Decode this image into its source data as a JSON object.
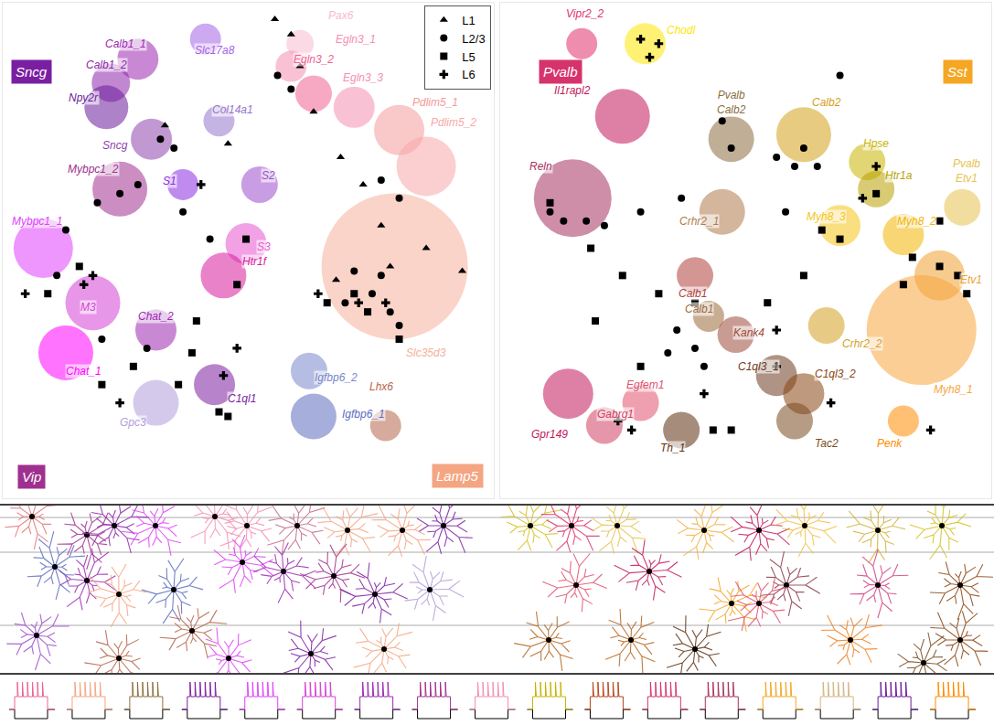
{
  "chart_data": [
    {
      "type": "scatter",
      "xlim": [
        0,
        545
      ],
      "ylim": [
        545,
        0
      ],
      "tick_labels": false,
      "grid": false,
      "legend": "top right",
      "class_labels": [
        {
          "text": "Sncg",
          "x": 32,
          "y": 76,
          "color": "#7b1fa2"
        },
        {
          "text": "Vip",
          "x": 32,
          "y": 521,
          "color": "#a0308f"
        },
        {
          "text": "Lamp5",
          "x": 505,
          "y": 520,
          "color": "#f4a582"
        }
      ],
      "clusters": [
        {
          "label": "Calb1_1",
          "x": 150,
          "y": 62,
          "size": 45,
          "color": "#9c27b0",
          "label_x": 137,
          "label_y": 45
        },
        {
          "label": "Calb1_2",
          "x": 120,
          "y": 88,
          "size": 42,
          "color": "#8e24aa",
          "label_x": 115,
          "label_y": 68
        },
        {
          "label": "Slc17a8",
          "x": 225,
          "y": 40,
          "size": 34,
          "color": "#a463e8",
          "label_x": 235,
          "label_y": 52
        },
        {
          "label": "Npy2r",
          "x": 115,
          "y": 115,
          "size": 48,
          "color": "#6a1b9a",
          "label_x": 90,
          "label_y": 105
        },
        {
          "label": "Sncg",
          "x": 165,
          "y": 150,
          "size": 45,
          "color": "#8e44ad",
          "label_x": 125,
          "label_y": 157
        },
        {
          "label": "Col14a1",
          "x": 240,
          "y": 130,
          "size": 34,
          "color": "#9575cd",
          "label_x": 255,
          "label_y": 118
        },
        {
          "label": "Mybpc1_2",
          "x": 130,
          "y": 205,
          "size": 60,
          "color": "#a0308f",
          "label_x": 100,
          "label_y": 183
        },
        {
          "label": "S1",
          "x": 200,
          "y": 200,
          "size": 34,
          "color": "#8a2be2",
          "label_x": 185,
          "label_y": 196
        },
        {
          "label": "S2",
          "x": 285,
          "y": 200,
          "size": 40,
          "color": "#9c4dcc",
          "label_x": 295,
          "label_y": 190
        },
        {
          "label": "Mybpc1_1",
          "x": 45,
          "y": 270,
          "size": 65,
          "color": "#e040fb",
          "label_x": 38,
          "label_y": 240
        },
        {
          "label": "S3",
          "x": 270,
          "y": 265,
          "size": 45,
          "color": "#e854d0",
          "label_x": 290,
          "label_y": 268
        },
        {
          "label": "Htr1f",
          "x": 245,
          "y": 300,
          "size": 50,
          "color": "#d81b9e",
          "label_x": 280,
          "label_y": 285
        },
        {
          "label": "M3",
          "x": 100,
          "y": 330,
          "size": 60,
          "color": "#d63fd6",
          "label_x": 95,
          "label_y": 335
        },
        {
          "label": "Chat_2",
          "x": 170,
          "y": 360,
          "size": 45,
          "color": "#9c27b0",
          "label_x": 170,
          "label_y": 345
        },
        {
          "label": "Chat_1",
          "x": 70,
          "y": 385,
          "size": 60,
          "color": "#ff00ff",
          "label_x": 90,
          "label_y": 405
        },
        {
          "label": "Gpc3",
          "x": 170,
          "y": 440,
          "size": 50,
          "color": "#b39ddb",
          "label_x": 145,
          "label_y": 462
        },
        {
          "label": "C1ql1",
          "x": 235,
          "y": 420,
          "size": 45,
          "color": "#7b1fa2",
          "label_x": 265,
          "label_y": 435
        },
        {
          "label": "Igfbp6_2",
          "x": 340,
          "y": 405,
          "size": 40,
          "color": "#7986cb",
          "label_x": 370,
          "label_y": 412
        },
        {
          "label": "Igfbp6_1",
          "x": 345,
          "y": 455,
          "size": 50,
          "color": "#5c6bc0",
          "label_x": 400,
          "label_y": 452
        },
        {
          "label": "Lhx6",
          "x": 425,
          "y": 465,
          "size": 34,
          "color": "#b5654a",
          "label_x": 420,
          "label_y": 422
        },
        {
          "label": "Pax6",
          "x": 330,
          "y": 45,
          "size": 30,
          "color": "#f8bbd0",
          "label_x": 375,
          "label_y": 14
        },
        {
          "label": "Egln3_1",
          "x": 320,
          "y": 70,
          "size": 34,
          "color": "#f48fb1",
          "label_x": 392,
          "label_y": 40
        },
        {
          "label": "Egln3_2",
          "x": 345,
          "y": 100,
          "size": 40,
          "color": "#f06292",
          "label_x": 345,
          "label_y": 62
        },
        {
          "label": "Egln3_3",
          "x": 390,
          "y": 115,
          "size": 45,
          "color": "#f48fb1",
          "label_x": 400,
          "label_y": 82
        },
        {
          "label": "Pdlim5_1",
          "x": 440,
          "y": 140,
          "size": 55,
          "color": "#f49a9a",
          "label_x": 480,
          "label_y": 110
        },
        {
          "label": "Pdlim5_2",
          "x": 470,
          "y": 180,
          "size": 65,
          "color": "#f8a8a8",
          "label_x": 500,
          "label_y": 132
        },
        {
          "label": "Slc35d3",
          "x": 435,
          "y": 290,
          "size": 160,
          "color": "#f6b09a",
          "label_x": 470,
          "label_y": 385
        }
      ],
      "series": [
        {
          "name": "L1",
          "marker": "triangle-up",
          "color": "#000000",
          "x": [
            302,
            320,
            330,
            345,
            375,
            400,
            420,
            470,
            510,
            430,
            370,
            180,
            250
          ],
          "y": [
            18,
            35,
            70,
            120,
            170,
            200,
            245,
            270,
            295,
            290,
            305,
            135,
            155
          ]
        },
        {
          "name": "L2/3",
          "marker": "circle",
          "color": "#000000",
          "x": [
            175,
            190,
            150,
            130,
            105,
            70,
            200,
            230,
            305,
            320,
            420,
            440,
            390,
            420,
            410,
            430,
            440,
            380,
            110,
            160,
            60
          ],
          "y": [
            150,
            160,
            200,
            210,
            220,
            250,
            230,
            260,
            80,
            95,
            195,
            215,
            295,
            300,
            320,
            340,
            355,
            330,
            370,
            380,
            300
          ]
        },
        {
          "name": "L5",
          "marker": "square",
          "color": "#000000",
          "x": [
            50,
            85,
            270,
            260,
            215,
            210,
            195,
            240,
            250,
            390,
            405,
            440,
            360,
            110,
            145
          ],
          "y": [
            320,
            290,
            260,
            310,
            350,
            385,
            420,
            450,
            455,
            320,
            340,
            370,
            330,
            420,
            400
          ]
        },
        {
          "name": "L6",
          "marker": "cross",
          "color": "#000000",
          "x": [
            25,
            100,
            220,
            260,
            245,
            395,
            425,
            350,
            130,
            90
          ],
          "y": [
            320,
            300,
            200,
            380,
            410,
            330,
            330,
            320,
            440,
            310
          ]
        }
      ]
    },
    {
      "type": "scatter",
      "xlim": [
        545,
        1087
      ],
      "ylim": [
        545,
        0
      ],
      "tick_labels": false,
      "grid": false,
      "class_labels": [
        {
          "text": "Pvalb",
          "x": 612,
          "y": 76,
          "color": "#d6336c"
        },
        {
          "text": "Sst",
          "x": 1050,
          "y": 76,
          "color": "#f5a623"
        }
      ],
      "clusters": [
        {
          "label": "Vipr2_2",
          "x": 635,
          "y": 45,
          "size": 34,
          "color": "#e0306a",
          "label_x": 638,
          "label_y": 12
        },
        {
          "label": "Chodl",
          "x": 705,
          "y": 45,
          "size": 45,
          "color": "#ffe600",
          "label_x": 745,
          "label_y": 30
        },
        {
          "label": "Il1rapl2",
          "x": 680,
          "y": 125,
          "size": 60,
          "color": "#c2185b",
          "label_x": 625,
          "label_y": 97
        },
        {
          "label": "Pvalb Calb2",
          "x": 800,
          "y": 150,
          "size": 50,
          "color": "#8d6e3f",
          "label_x": 800,
          "label_y": 110
        },
        {
          "label": "Calb2",
          "x": 880,
          "y": 145,
          "size": 60,
          "color": "#d4a017",
          "label_x": 905,
          "label_y": 110
        },
        {
          "label": "Hpse",
          "x": 950,
          "y": 175,
          "size": 40,
          "color": "#c8b400",
          "label_x": 960,
          "label_y": 155
        },
        {
          "label": "Htr1a",
          "x": 960,
          "y": 205,
          "size": 40,
          "color": "#b8a000",
          "label_x": 985,
          "label_y": 190
        },
        {
          "label": "Pvalb Etv1",
          "x": 1055,
          "y": 225,
          "size": 40,
          "color": "#e6c350",
          "label_x": 1060,
          "label_y": 185
        },
        {
          "label": "Reln",
          "x": 625,
          "y": 215,
          "size": 85,
          "color": "#a8325e",
          "label_x": 590,
          "label_y": 180
        },
        {
          "label": "Crhr2_1",
          "x": 790,
          "y": 230,
          "size": 50,
          "color": "#b07a4a",
          "label_x": 765,
          "label_y": 240
        },
        {
          "label": "Myh8_3",
          "x": 920,
          "y": 245,
          "size": 45,
          "color": "#f5c518",
          "label_x": 905,
          "label_y": 235
        },
        {
          "label": "Myh8_2",
          "x": 990,
          "y": 255,
          "size": 45,
          "color": "#f2b400",
          "label_x": 1005,
          "label_y": 240
        },
        {
          "label": "Etv1",
          "x": 1030,
          "y": 300,
          "size": 55,
          "color": "#f0a030",
          "label_x": 1065,
          "label_y": 305
        },
        {
          "label": "Calb1",
          "x": 760,
          "y": 300,
          "size": 40,
          "color": "#b0403a",
          "label_x": 757,
          "label_y": 320
        },
        {
          "label": "Calb1",
          "x": 775,
          "y": 345,
          "size": 34,
          "color": "#9c6a3a",
          "label_x": 765,
          "label_y": 337
        },
        {
          "label": "Kank4",
          "x": 805,
          "y": 365,
          "size": 40,
          "color": "#9c4a3a",
          "label_x": 820,
          "label_y": 363
        },
        {
          "label": "C1ql3_1",
          "x": 850,
          "y": 410,
          "size": 45,
          "color": "#6d3a20",
          "label_x": 830,
          "label_y": 400
        },
        {
          "label": "Crhr2_2",
          "x": 905,
          "y": 355,
          "size": 40,
          "color": "#d4a020",
          "label_x": 945,
          "label_y": 375
        },
        {
          "label": "C1ql3_2",
          "x": 880,
          "y": 430,
          "size": 45,
          "color": "#8b4513",
          "label_x": 915,
          "label_y": 408
        },
        {
          "label": "Egfem1",
          "x": 700,
          "y": 440,
          "size": 40,
          "color": "#e05070",
          "label_x": 705,
          "label_y": 420
        },
        {
          "label": "Gabrg1",
          "x": 660,
          "y": 465,
          "size": 40,
          "color": "#d04060",
          "label_x": 672,
          "label_y": 452
        },
        {
          "label": "Gpr149",
          "x": 620,
          "y": 430,
          "size": 55,
          "color": "#c2185b",
          "label_x": 600,
          "label_y": 475
        },
        {
          "label": "Th_1",
          "x": 745,
          "y": 470,
          "size": 40,
          "color": "#5d2e0e",
          "label_x": 735,
          "label_y": 490
        },
        {
          "label": "Tac2",
          "x": 870,
          "y": 460,
          "size": 40,
          "color": "#7a4a20",
          "label_x": 905,
          "label_y": 485
        },
        {
          "label": "Penk",
          "x": 990,
          "y": 460,
          "size": 34,
          "color": "#ff8c00",
          "label_x": 975,
          "label_y": 485
        },
        {
          "label": "Myh8_1",
          "x": 1010,
          "y": 360,
          "size": 120,
          "color": "#f7a540",
          "label_x": 1045,
          "label_y": 425
        }
      ],
      "series": [
        {
          "name": "L2/3",
          "marker": "circle",
          "color": "#000000",
          "x": [
            600,
            615,
            640,
            660,
            700,
            745,
            790,
            800,
            850,
            870,
            880,
            895,
            860,
            760,
            770,
            730,
            740,
            920
          ],
          "y": [
            230,
            240,
            240,
            245,
            230,
            215,
            130,
            160,
            170,
            180,
            160,
            180,
            230,
            380,
            400,
            385,
            360,
            80
          ]
        },
        {
          "name": "L5",
          "marker": "square",
          "color": "#000000",
          "x": [
            600,
            645,
            680,
            720,
            760,
            840,
            880,
            900,
            920,
            960,
            1000,
            1030,
            1050,
            1060,
            1030,
            990,
            800,
            780,
            700,
            650
          ],
          "y": [
            220,
            270,
            300,
            320,
            330,
            330,
            300,
            250,
            260,
            210,
            280,
            290,
            300,
            320,
            240,
            310,
            470,
            470,
            400,
            350
          ]
        },
        {
          "name": "L6",
          "marker": "cross",
          "color": "#000000",
          "x": [
            720,
            700,
            710,
            850,
            850,
            910,
            945,
            1020,
            690,
            675,
            770,
            960
          ],
          "y": [
            45,
            40,
            60,
            400,
            360,
            440,
            215,
            470,
            470,
            460,
            430,
            180
          ]
        }
      ]
    }
  ],
  "morphologies": {
    "colors": [
      "#e57373",
      "#a0308f",
      "#8e24aa",
      "#e040fb",
      "#f48fb1",
      "#f48fb1",
      "#c56b8a",
      "#f4a582",
      "#f4a582",
      "#7b1fa2",
      "#9c27b0",
      "#e040fb",
      "#9c27b0",
      "#f4a582",
      "#5c6bc0",
      "#a0308f",
      "#7b1fa2",
      "#b39ddb",
      "#5c6bc0",
      "#9c4dcc",
      "#b5654a",
      "#b5654a",
      "#e040fb",
      "#7b1fa2",
      "#f4a582",
      "#d4c020",
      "#e0306a",
      "#e6c350",
      "#f5b041",
      "#c2185b",
      "#f2c040",
      "#d4b030",
      "#d4c020",
      "#e05070",
      "#c2185b",
      "#8b3a4a",
      "#d04080",
      "#8b4513",
      "#f5a623",
      "#b5651d",
      "#b5651d",
      "#5d2e0e",
      "#e05070",
      "#f08020",
      "#8b4513",
      "#7a4a20"
    ]
  },
  "ephys_traces": {
    "colors": [
      "#f06292",
      "#f4a582",
      "#8d6e3f",
      "#7b1fa2",
      "#e040fb",
      "#d63fd6",
      "#9c27b0",
      "#a0308f",
      "#f48fb1",
      "#c8b400",
      "#b5451b",
      "#d6336c",
      "#a8325e",
      "#f5a623",
      "#d4b483",
      "#6a1b9a",
      "#ff8c00"
    ]
  }
}
